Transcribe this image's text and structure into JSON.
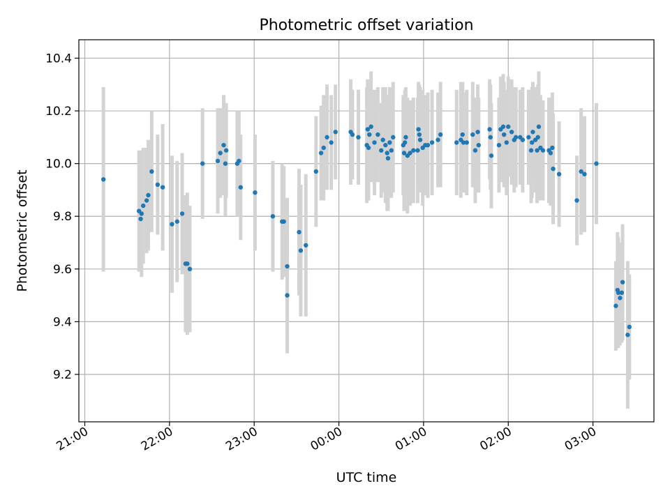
{
  "chart_data": {
    "type": "scatter",
    "title": "Photometric offset variation",
    "xlabel": "UTC time",
    "ylabel": "Photometric offset",
    "x_unit": "hours since 21:00 UTC",
    "xlim": [
      -0.07,
      6.72
    ],
    "ylim": [
      9.02,
      10.47
    ],
    "x_ticks": [
      {
        "label": "21:00",
        "value": 0
      },
      {
        "label": "22:00",
        "value": 1
      },
      {
        "label": "23:00",
        "value": 2
      },
      {
        "label": "00:00",
        "value": 3
      },
      {
        "label": "01:00",
        "value": 4
      },
      {
        "label": "02:00",
        "value": 5
      },
      {
        "label": "03:00",
        "value": 6
      }
    ],
    "y_ticks": [
      {
        "label": "9.2",
        "value": 9.2
      },
      {
        "label": "9.4",
        "value": 9.4
      },
      {
        "label": "9.6",
        "value": 9.6
      },
      {
        "label": "9.8",
        "value": 9.8
      },
      {
        "label": "10.0",
        "value": 10.0
      },
      {
        "label": "10.2",
        "value": 10.2
      },
      {
        "label": "10.4",
        "value": 10.4
      }
    ],
    "grid": true,
    "point_color": "#1f77b4",
    "errorbar_color": "#d3d3d3",
    "points": [
      [
        0.22,
        9.94,
        0.35
      ],
      [
        0.64,
        9.82,
        0.23
      ],
      [
        0.66,
        9.79,
        0.2
      ],
      [
        0.67,
        9.81,
        0.24
      ],
      [
        0.69,
        9.84,
        0.22
      ],
      [
        0.73,
        9.86,
        0.2
      ],
      [
        0.75,
        9.88,
        0.21
      ],
      [
        0.79,
        9.97,
        0.23
      ],
      [
        0.86,
        9.92,
        0.19
      ],
      [
        0.92,
        9.91,
        0.24
      ],
      [
        1.03,
        9.77,
        0.26
      ],
      [
        1.09,
        9.78,
        0.23
      ],
      [
        1.15,
        9.81,
        0.23
      ],
      [
        1.19,
        9.62,
        0.26
      ],
      [
        1.21,
        9.62,
        0.27
      ],
      [
        1.24,
        9.6,
        0.24
      ],
      [
        1.39,
        10.0,
        0.21
      ],
      [
        1.57,
        10.01,
        0.2
      ],
      [
        1.6,
        10.04,
        0.17
      ],
      [
        1.64,
        10.07,
        0.19
      ],
      [
        1.66,
        10.0,
        0.2
      ],
      [
        1.67,
        10.05,
        0.18
      ],
      [
        1.8,
        10.0,
        0.2
      ],
      [
        1.82,
        10.01,
        0.19
      ],
      [
        1.84,
        9.91,
        0.2
      ],
      [
        2.01,
        9.89,
        0.22
      ],
      [
        2.22,
        9.8,
        0.21
      ],
      [
        2.33,
        9.78,
        0.22
      ],
      [
        2.35,
        9.78,
        0.21
      ],
      [
        2.39,
        9.61,
        0.26
      ],
      [
        2.39,
        9.5,
        0.22
      ],
      [
        2.53,
        9.74,
        0.24
      ],
      [
        2.55,
        9.67,
        0.25
      ],
      [
        2.61,
        9.69,
        0.27
      ],
      [
        2.73,
        9.97,
        0.21
      ],
      [
        2.79,
        10.04,
        0.18
      ],
      [
        2.82,
        10.06,
        0.2
      ],
      [
        2.86,
        10.1,
        0.2
      ],
      [
        2.91,
        10.08,
        0.18
      ],
      [
        2.96,
        10.12,
        0.18
      ],
      [
        3.14,
        10.12,
        0.2
      ],
      [
        3.16,
        10.11,
        0.17
      ],
      [
        3.23,
        10.1,
        0.18
      ],
      [
        3.33,
        10.07,
        0.22
      ],
      [
        3.34,
        10.13,
        0.19
      ],
      [
        3.35,
        10.06,
        0.2
      ],
      [
        3.36,
        10.11,
        0.18
      ],
      [
        3.38,
        10.14,
        0.21
      ],
      [
        3.42,
        10.08,
        0.2
      ],
      [
        3.46,
        10.11,
        0.18
      ],
      [
        3.5,
        10.05,
        0.18
      ],
      [
        3.52,
        10.09,
        0.2
      ],
      [
        3.55,
        10.07,
        0.22
      ],
      [
        3.57,
        10.04,
        0.22
      ],
      [
        3.58,
        10.02,
        0.2
      ],
      [
        3.6,
        10.08,
        0.21
      ],
      [
        3.62,
        10.05,
        0.18
      ],
      [
        3.64,
        10.1,
        0.21
      ],
      [
        3.76,
        10.07,
        0.19
      ],
      [
        3.77,
        10.04,
        0.22
      ],
      [
        3.78,
        10.08,
        0.2
      ],
      [
        3.79,
        10.1,
        0.19
      ],
      [
        3.81,
        10.03,
        0.22
      ],
      [
        3.84,
        10.04,
        0.2
      ],
      [
        3.88,
        10.05,
        0.2
      ],
      [
        3.93,
        10.05,
        0.2
      ],
      [
        3.94,
        10.13,
        0.18
      ],
      [
        3.95,
        10.11,
        0.19
      ],
      [
        3.96,
        10.09,
        0.2
      ],
      [
        3.99,
        10.06,
        0.22
      ],
      [
        4.02,
        10.07,
        0.19
      ],
      [
        4.05,
        10.07,
        0.2
      ],
      [
        4.1,
        10.08,
        0.2
      ],
      [
        4.17,
        10.09,
        0.18
      ],
      [
        4.2,
        10.11,
        0.2
      ],
      [
        4.39,
        10.08,
        0.2
      ],
      [
        4.44,
        10.09,
        0.22
      ],
      [
        4.46,
        10.11,
        0.2
      ],
      [
        4.47,
        10.08,
        0.19
      ],
      [
        4.51,
        10.08,
        0.2
      ],
      [
        4.58,
        10.11,
        0.2
      ],
      [
        4.61,
        10.05,
        0.2
      ],
      [
        4.64,
        10.12,
        0.18
      ],
      [
        4.65,
        10.07,
        0.18
      ],
      [
        4.78,
        10.13,
        0.19
      ],
      [
        4.79,
        10.1,
        0.2
      ],
      [
        4.8,
        10.03,
        0.2
      ],
      [
        4.89,
        10.07,
        0.18
      ],
      [
        4.91,
        10.13,
        0.2
      ],
      [
        4.94,
        10.14,
        0.2
      ],
      [
        4.95,
        10.11,
        0.2
      ],
      [
        4.98,
        10.08,
        0.2
      ],
      [
        5.0,
        10.14,
        0.19
      ],
      [
        5.04,
        10.12,
        0.2
      ],
      [
        5.07,
        10.09,
        0.2
      ],
      [
        5.09,
        10.1,
        0.19
      ],
      [
        5.14,
        10.1,
        0.18
      ],
      [
        5.17,
        10.09,
        0.2
      ],
      [
        5.24,
        10.1,
        0.18
      ],
      [
        5.27,
        10.05,
        0.2
      ],
      [
        5.28,
        10.08,
        0.21
      ],
      [
        5.29,
        10.12,
        0.19
      ],
      [
        5.32,
        10.09,
        0.2
      ],
      [
        5.34,
        10.05,
        0.2
      ],
      [
        5.35,
        10.1,
        0.2
      ],
      [
        5.36,
        10.14,
        0.21
      ],
      [
        5.38,
        10.06,
        0.2
      ],
      [
        5.41,
        10.05,
        0.19
      ],
      [
        5.48,
        10.05,
        0.2
      ],
      [
        5.5,
        10.04,
        0.2
      ],
      [
        5.52,
        10.06,
        0.21
      ],
      [
        5.53,
        9.98,
        0.21
      ],
      [
        5.6,
        9.96,
        0.2
      ],
      [
        5.81,
        9.86,
        0.17
      ],
      [
        5.86,
        9.97,
        0.24
      ],
      [
        5.9,
        9.96,
        0.22
      ],
      [
        6.04,
        10.0,
        0.23
      ],
      [
        6.27,
        9.46,
        0.17
      ],
      [
        6.29,
        9.52,
        0.22
      ],
      [
        6.3,
        9.51,
        0.21
      ],
      [
        6.32,
        9.49,
        0.18
      ],
      [
        6.34,
        9.51,
        0.19
      ],
      [
        6.35,
        9.55,
        0.22
      ],
      [
        6.41,
        9.35,
        0.28
      ],
      [
        6.43,
        9.38,
        0.2
      ]
    ]
  }
}
